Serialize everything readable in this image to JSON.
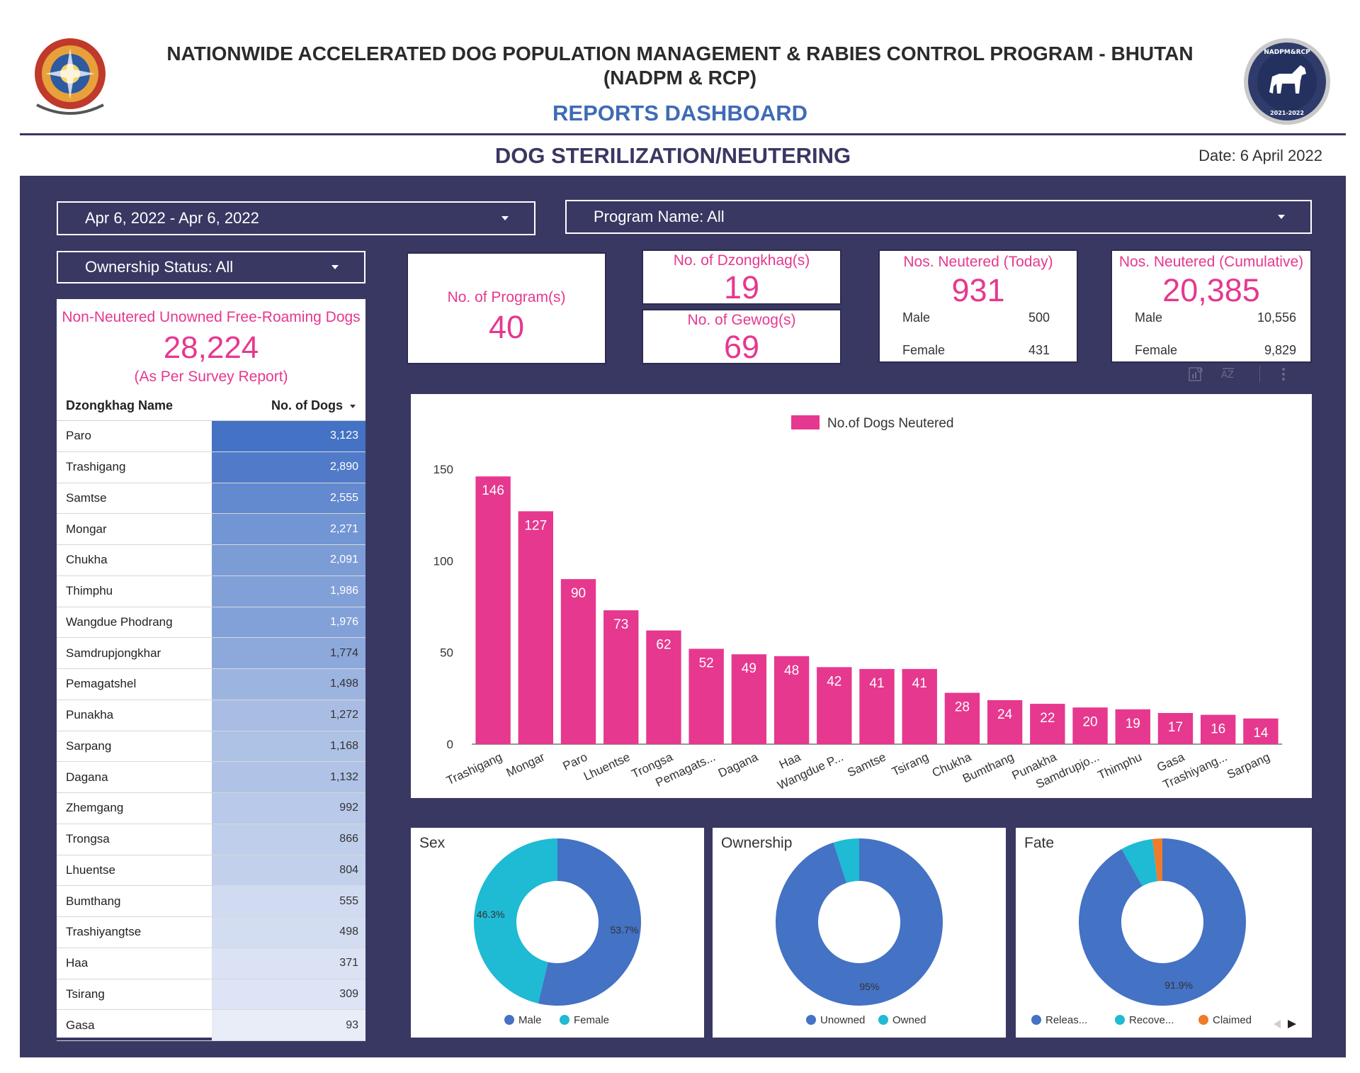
{
  "header": {
    "line1": "NATIONWIDE ACCELERATED DOG POPULATION MANAGEMENT & RABIES CONTROL PROGRAM - BHUTAN",
    "line2": "(NADPM & RCP)",
    "dashboard_title": "REPORTS DASHBOARD",
    "section_title": "DOG STERILIZATION/NEUTERING",
    "date": "Date: 6 April 2022",
    "right_logo_text_top": "NADPM&RCP",
    "right_logo_text_bottom": "2021-2022"
  },
  "filters": {
    "date_range": "Apr 6, 2022 - Apr 6, 2022",
    "program": "Program Name: All",
    "ownership": "Ownership Status: All"
  },
  "kpis": {
    "programs": {
      "label": "No. of Program(s)",
      "value": "40"
    },
    "dzongkhags": {
      "label": "No. of Dzongkhag(s)",
      "value": "19"
    },
    "gewogs": {
      "label": "No. of Gewog(s)",
      "value": "69"
    },
    "today": {
      "label": "Nos. Neutered (Today)",
      "value": "931",
      "male_label": "Male",
      "male": "500",
      "female_label": "Female",
      "female": "431"
    },
    "cumulative": {
      "label": "Nos. Neutered (Cumulative)",
      "value": "20,385",
      "male_label": "Male",
      "male": "10,556",
      "female_label": "Female",
      "female": "9,829"
    }
  },
  "survey": {
    "label": "Non-Neutered Unowned Free-Roaming Dogs",
    "value": "28,224",
    "note": "(As Per Survey Report)"
  },
  "table": {
    "col1": "Dzongkhag Name",
    "col2": "No. of Dogs",
    "max": 3123,
    "rows": [
      {
        "name": "Paro",
        "value": "3,123",
        "num": 3123
      },
      {
        "name": "Trashigang",
        "value": "2,890",
        "num": 2890
      },
      {
        "name": "Samtse",
        "value": "2,555",
        "num": 2555
      },
      {
        "name": "Mongar",
        "value": "2,271",
        "num": 2271
      },
      {
        "name": "Chukha",
        "value": "2,091",
        "num": 2091
      },
      {
        "name": "Thimphu",
        "value": "1,986",
        "num": 1986
      },
      {
        "name": "Wangdue Phodrang",
        "value": "1,976",
        "num": 1976
      },
      {
        "name": "Samdrupjongkhar",
        "value": "1,774",
        "num": 1774
      },
      {
        "name": "Pemagatshel",
        "value": "1,498",
        "num": 1498
      },
      {
        "name": "Punakha",
        "value": "1,272",
        "num": 1272
      },
      {
        "name": "Sarpang",
        "value": "1,168",
        "num": 1168
      },
      {
        "name": "Dagana",
        "value": "1,132",
        "num": 1132
      },
      {
        "name": "Zhemgang",
        "value": "992",
        "num": 992
      },
      {
        "name": "Trongsa",
        "value": "866",
        "num": 866
      },
      {
        "name": "Lhuentse",
        "value": "804",
        "num": 804
      },
      {
        "name": "Bumthang",
        "value": "555",
        "num": 555
      },
      {
        "name": "Trashiyangtse",
        "value": "498",
        "num": 498
      },
      {
        "name": "Haa",
        "value": "371",
        "num": 371
      },
      {
        "name": "Tsirang",
        "value": "309",
        "num": 309
      },
      {
        "name": "Gasa",
        "value": "93",
        "num": 93
      }
    ]
  },
  "colors": {
    "panel": "#393863",
    "pink": "#e6388f",
    "blue": "#4472c4",
    "teal": "#1fbad3",
    "orange": "#f07b2a"
  },
  "chart_data": [
    {
      "type": "bar",
      "legend": "No.of Dogs Neutered",
      "categories": [
        "Trashigang",
        "Mongar",
        "Paro",
        "Lhuentse",
        "Trongsa",
        "Pemagats...",
        "Dagana",
        "Haa",
        "Wangdue P...",
        "Samtse",
        "Tsirang",
        "Chukha",
        "Bumthang",
        "Punakha",
        "Samdrupjo...",
        "Thimphu",
        "Gasa",
        "Trashiyang...",
        "Sarpang"
      ],
      "series": [
        {
          "name": "No.of Dogs Neutered",
          "values": [
            146,
            127,
            90,
            73,
            62,
            52,
            49,
            48,
            42,
            41,
            41,
            28,
            24,
            22,
            20,
            19,
            17,
            16,
            14
          ]
        }
      ],
      "yticks": [
        0,
        50,
        100,
        150
      ],
      "ylim": [
        0,
        160
      ]
    },
    {
      "type": "pie",
      "title": "Sex",
      "labels": [
        "Male",
        "Female"
      ],
      "values": [
        53.7,
        46.3
      ],
      "value_labels": [
        "53.7%",
        "46.3%"
      ]
    },
    {
      "type": "pie",
      "title": "Ownership",
      "labels": [
        "Unowned",
        "Owned"
      ],
      "values": [
        95,
        5
      ],
      "value_labels": [
        "95%",
        ""
      ]
    },
    {
      "type": "pie",
      "title": "Fate",
      "labels": [
        "Releas...",
        "Recove...",
        "Claimed"
      ],
      "values": [
        91.9,
        6.2,
        1.9
      ],
      "value_labels": [
        "91.9%",
        "",
        ""
      ]
    }
  ]
}
